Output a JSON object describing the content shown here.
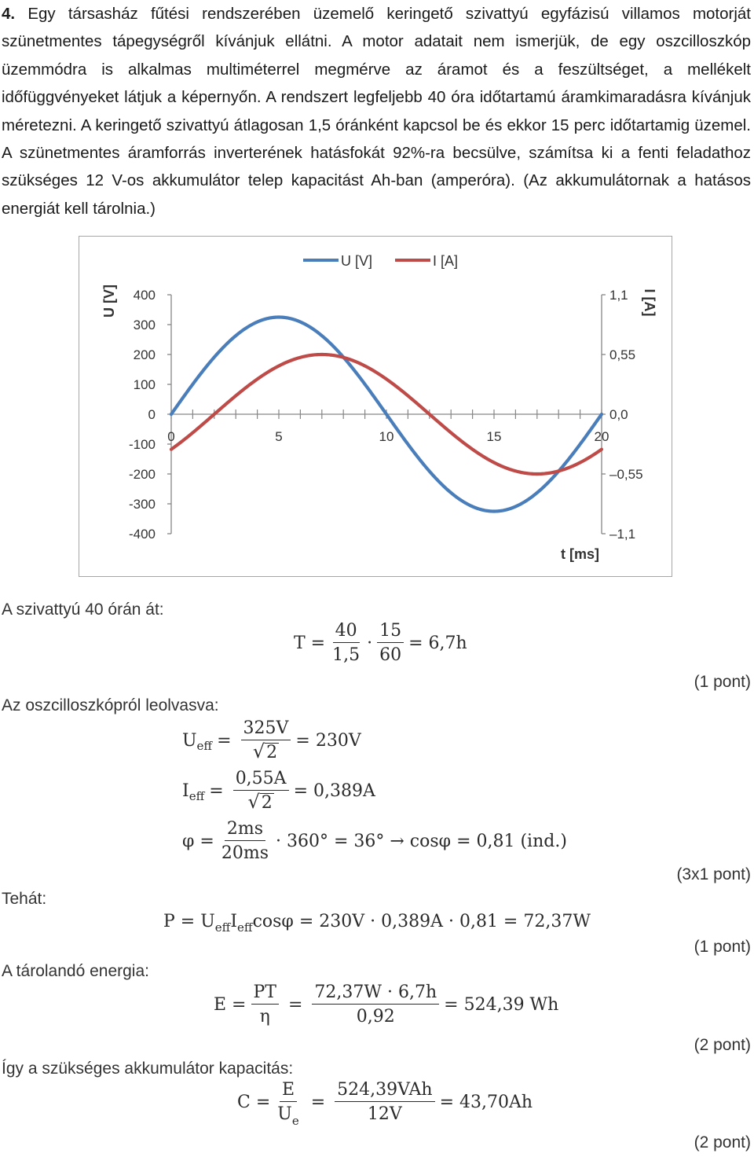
{
  "problem": {
    "number": "4.",
    "text": "Egy társasház fűtési rendszerében üzemelő keringető szivattyú egyfázisú villamos motorját szünetmentes tápegységről kívánjuk ellátni. A motor adatait nem ismerjük, de egy oszcilloszkóp üzemmódra is alkalmas multiméterrel megmérve az áramot és a feszültséget, a mellékelt időfüggvényeket látjuk a képernyőn. A rendszert legfeljebb 40 óra időtartamú áramkimaradásra kívánjuk méretezni. A keringető szivattyú átlagosan 1,5 óránként kapcsol be és ekkor 15 perc időtartamig üzemel. A szünetmentes áramforrás inverterének hatásfokát 92%-ra becsülve, számítsa ki a fenti feladathoz szükséges 12 V-os akkumulátor telep kapacitást Ah-ban (amperóra). (Az akkumulátornak a hatásos energiát kell tárolnia.)"
  },
  "chart_data": {
    "type": "line",
    "title": "",
    "xlabel": "t [ms]",
    "ylabel_left": "U [V]",
    "ylabel_right": "I [A]",
    "xlim": [
      0,
      20
    ],
    "ylim_left": [
      -400,
      400
    ],
    "ylim_right": [
      -1.1,
      1.1
    ],
    "x_ticks": [
      "0",
      "5",
      "10",
      "15",
      "20"
    ],
    "y_left_ticks": [
      "400",
      "300",
      "200",
      "100",
      "0",
      "-100",
      "-200",
      "-300",
      "-400"
    ],
    "y_right_ticks": [
      "1,1",
      "0,55",
      "0,0",
      "–0,55",
      "–1,1"
    ],
    "legend_position": "top",
    "grid": false,
    "series": [
      {
        "name": "U [V]",
        "axis": "left",
        "color": "#4a7ebb",
        "amplitude": 325,
        "phase_deg": 0,
        "period_ms": 20
      },
      {
        "name": "I [A]",
        "axis": "right",
        "color": "#be4b48",
        "amplitude": 0.55,
        "phase_deg": -36,
        "period_ms": 20
      }
    ]
  },
  "solution": {
    "step1_label": "A szivattyú 40 órán át:",
    "step1_points": "(1 pont)",
    "step2_label": "Az oszcilloszkópról leolvasva:",
    "step2_points": "(3x1 pont)",
    "step3_label": "Tehát:",
    "step3_points": "(1 pont)",
    "step4_label": "A tárolandó energia:",
    "step4_points": "(2 pont)",
    "step5_label": "Így a szükséges akkumulátor kapacitás:",
    "step5_points": "(2 pont)"
  },
  "formulas": {
    "T": {
      "lhs": "T =",
      "n1": "40",
      "d1": "1,5",
      "dot": "·",
      "n2": "15",
      "d2": "60",
      "rhs": "= 6,7h"
    },
    "Ueff": {
      "lhs": "U",
      "sub": "eff",
      "eq": "=",
      "num": "325V",
      "den": "2",
      "rhs": "= 230V"
    },
    "Ieff": {
      "lhs": "I",
      "sub": "eff",
      "eq": "=",
      "num": "0,55A",
      "den": "2",
      "rhs": "= 0,389A"
    },
    "phi": {
      "lhs": "φ =",
      "num": "2ms",
      "den": "20ms",
      "rhs": "· 360° = 36° → cosφ = 0,81 (ind.)"
    },
    "P": {
      "a": "P = U",
      "s1": "eff",
      "b": "I",
      "s2": "eff",
      "c": "cosφ = 230V · 0,389A · 0,81 = 72,37W"
    },
    "E": {
      "lhs": "E =",
      "n1": "PT",
      "d1": "η",
      "eq": "=",
      "n2": "72,37W · 6,7h",
      "d2": "0,92",
      "rhs": "= 524,39 Wh"
    },
    "C": {
      "lhs": "C =",
      "n1": "E",
      "d1": "U",
      "d1sub": "e",
      "eq": "=",
      "n2": "524,39VAh",
      "d2": "12V",
      "rhs": "= 43,70Ah"
    }
  }
}
